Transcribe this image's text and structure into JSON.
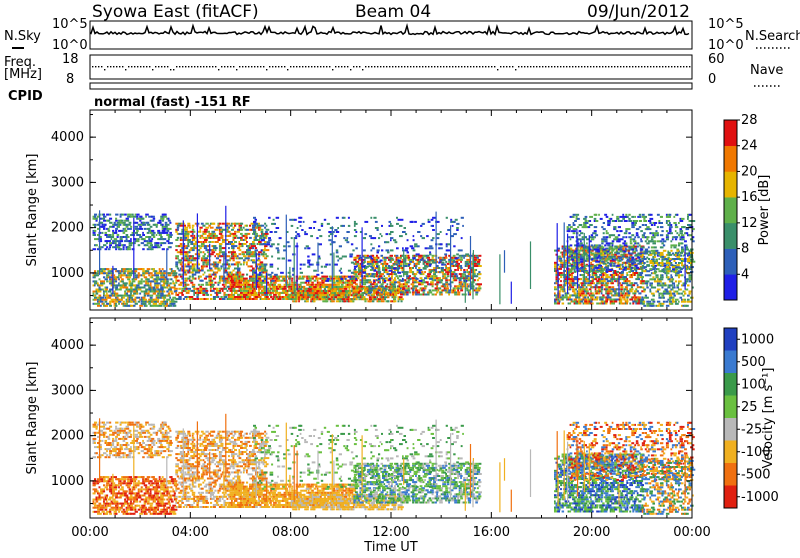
{
  "header": {
    "station": "Syowa East (fitACF)",
    "beam": "Beam 04",
    "date": "09/Jun/2012"
  },
  "noise_panel": {
    "left_label": "N.Sky",
    "right_label": "N.Search",
    "left_ticks": [
      "10^5",
      "10^0"
    ],
    "right_ticks": [
      "10^5",
      "10^0"
    ]
  },
  "freq_panel": {
    "left_label_1": "Freq.",
    "left_label_2": "[MHz]",
    "right_label": "Nave",
    "left_ticks": [
      "18",
      "8"
    ],
    "right_ticks": [
      "60",
      "0"
    ]
  },
  "cpid": {
    "label": "CPID",
    "value": "normal (fast) -151 RF"
  },
  "chart_data": [
    {
      "type": "heatmap",
      "name": "power",
      "ylabel": "Slant Range [km]",
      "xlabel": "",
      "ylim": [
        180,
        4600
      ],
      "yticks": [
        "1000",
        "2000",
        "3000",
        "4000"
      ],
      "colorbar_label": "Power [dB]",
      "colorbar_ticks": [
        "4",
        "8",
        "12",
        "16",
        "20",
        "24",
        "28"
      ],
      "colorbar_colors": [
        "#1f1fe6",
        "#2d5fb8",
        "#3a8f6a",
        "#5fb04a",
        "#e6b400",
        "#f07800",
        "#e01010"
      ]
    },
    {
      "type": "heatmap",
      "name": "velocity",
      "ylabel": "Slant Range [km]",
      "xlabel": "Time UT",
      "ylim": [
        180,
        4600
      ],
      "yticks": [
        "1000",
        "2000",
        "3000",
        "4000"
      ],
      "xticks": [
        "00:00",
        "04:00",
        "08:00",
        "12:00",
        "16:00",
        "20:00",
        "00:00"
      ],
      "colorbar_label": "Velocity [m s⁻¹]",
      "colorbar_ticks": [
        "1000",
        "500",
        "100",
        "25",
        "-25",
        "-100",
        "-500",
        "-1000"
      ],
      "colorbar_colors": [
        "#2040c0",
        "#3a7ad0",
        "#3a9a4a",
        "#6ac040",
        "#b8b8b8",
        "#f0b020",
        "#f07010",
        "#e02010"
      ]
    }
  ]
}
